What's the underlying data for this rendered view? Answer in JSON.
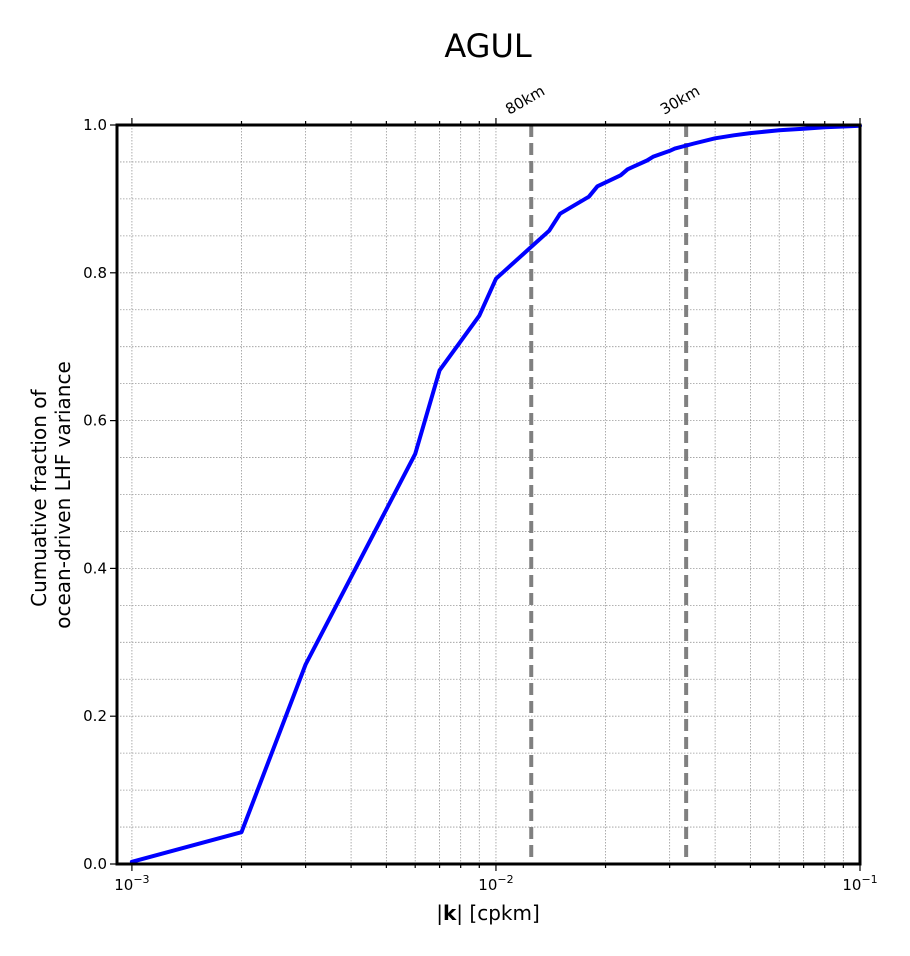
{
  "chart_data": {
    "type": "line",
    "title": "AGUL",
    "xlabel_prefix": "|",
    "xlabel_bold": "k",
    "xlabel_suffix": "| [cpkm]",
    "ylabel_line1": "Cumuative fraction of",
    "ylabel_line2": "ocean-driven LHF variance",
    "x_scale": "log",
    "xlim": [
      0.00091,
      0.1
    ],
    "ylim": [
      0,
      1.0
    ],
    "grid": true,
    "x_major_ticks": [
      {
        "value": 0.001,
        "base": "10",
        "exp": "−3"
      },
      {
        "value": 0.01,
        "base": "10",
        "exp": "−2"
      },
      {
        "value": 0.1,
        "base": "10",
        "exp": "−1"
      }
    ],
    "y_ticks": [
      {
        "value": 0.0,
        "label": "0.0"
      },
      {
        "value": 0.2,
        "label": "0.2"
      },
      {
        "value": 0.4,
        "label": "0.4"
      },
      {
        "value": 0.6,
        "label": "0.6"
      },
      {
        "value": 0.8,
        "label": "0.8"
      },
      {
        "value": 1.0,
        "label": "1.0"
      }
    ],
    "reference_lines": [
      {
        "x": 0.0125,
        "label": "80km",
        "color": "#808080",
        "style": "dashed"
      },
      {
        "x": 0.0333,
        "label": "30km",
        "color": "#808080",
        "style": "dashed"
      }
    ],
    "series": [
      {
        "color": "#0000ff",
        "x": [
          0.001,
          0.002,
          0.003,
          0.005,
          0.006,
          0.007,
          0.009,
          0.01,
          0.0125,
          0.014,
          0.015,
          0.018,
          0.019,
          0.022,
          0.023,
          0.026,
          0.027,
          0.03,
          0.031,
          0.035,
          0.04,
          0.045,
          0.05,
          0.06,
          0.07,
          0.08,
          0.09,
          0.1
        ],
        "y": [
          0.003,
          0.043,
          0.27,
          0.48,
          0.555,
          0.668,
          0.742,
          0.792,
          0.835,
          0.857,
          0.88,
          0.903,
          0.917,
          0.932,
          0.94,
          0.952,
          0.957,
          0.965,
          0.968,
          0.975,
          0.982,
          0.986,
          0.989,
          0.993,
          0.995,
          0.997,
          0.998,
          0.999
        ]
      }
    ]
  }
}
